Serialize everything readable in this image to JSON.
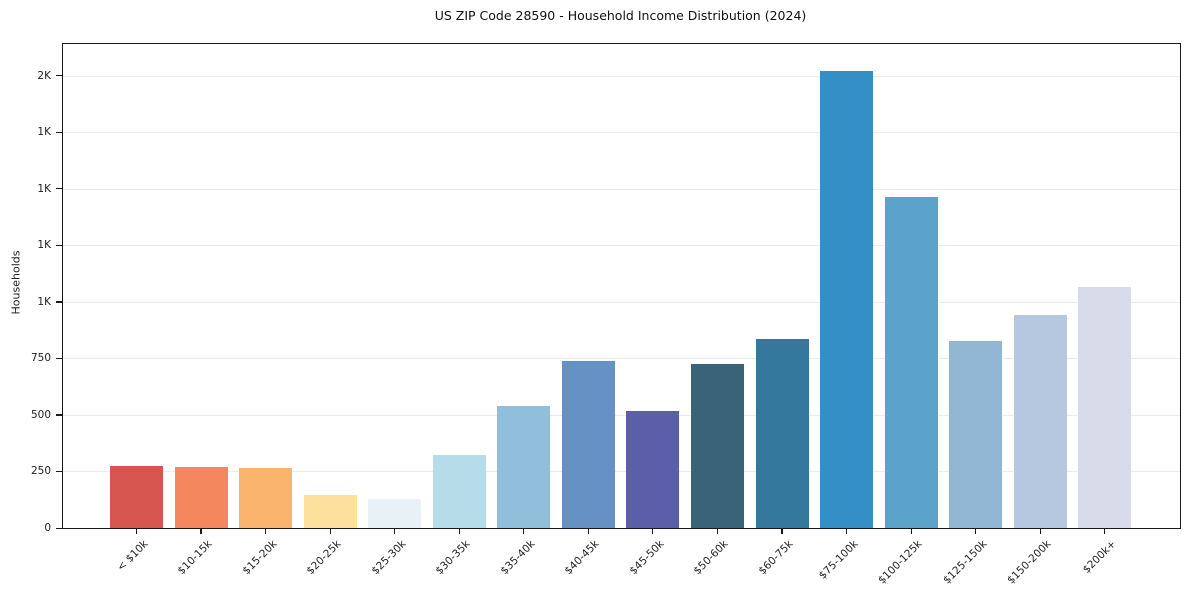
{
  "chart_data": {
    "type": "bar",
    "title": "US ZIP Code 28590 - Household Income Distribution (2024)",
    "xlabel": "",
    "ylabel": "Households",
    "categories": [
      "< $10k",
      "$10-15k",
      "$15-20k",
      "$20-25k",
      "$25-30k",
      "$30-35k",
      "$35-40k",
      "$40-45k",
      "$45-50k",
      "$50-60k",
      "$60-75k",
      "$75-100k",
      "$100-125k",
      "$125-150k",
      "$150-200k",
      "$200k+"
    ],
    "values": [
      272,
      269,
      264,
      145,
      130,
      322,
      538,
      737,
      516,
      723,
      834,
      2022,
      1464,
      828,
      940,
      1064
    ],
    "bar_colors": [
      "#d6564f",
      "#f4875e",
      "#fab46e",
      "#fde09e",
      "#e8f1f5",
      "#b6dbe9",
      "#90bedb",
      "#6691c4",
      "#5b5ea9",
      "#386379",
      "#35789e",
      "#338fc6",
      "#5ba3ca",
      "#92b7d5",
      "#b6c8df",
      "#d8dbe9"
    ],
    "y_ticks": [
      {
        "value": 0,
        "label": "0"
      },
      {
        "value": 250,
        "label": "250"
      },
      {
        "value": 500,
        "label": "500"
      },
      {
        "value": 750,
        "label": "750"
      },
      {
        "value": 1000,
        "label": "1K"
      },
      {
        "value": 1250,
        "label": "1K"
      },
      {
        "value": 1500,
        "label": "1K"
      },
      {
        "value": 1750,
        "label": "1K"
      },
      {
        "value": 2000,
        "label": "2K"
      }
    ],
    "ylim": [
      0,
      2140
    ],
    "grid": "horizontal-only",
    "legend": "none",
    "plot_background": "#ffffff",
    "spine_color": "#1a1a1a",
    "gridline_color": "#ebebeb"
  }
}
